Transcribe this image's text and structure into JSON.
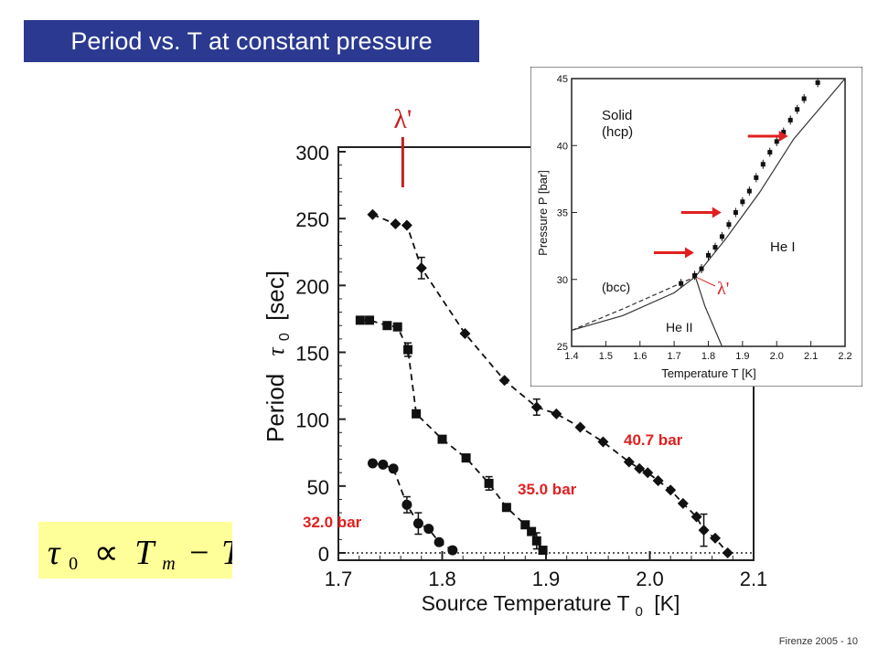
{
  "slide": {
    "title": "Period vs. T at constant pressure",
    "footer": "Firenze 2005 - 10",
    "formula": {
      "lhs": "τ",
      "lhs_sub": "0",
      "rel": "∝",
      "t1": "T",
      "t1_sub": "m",
      "op": "−",
      "t2": "T"
    }
  },
  "colors": {
    "title_bg": "#2b3990",
    "label_red": "#e02020",
    "arrow_red": "#e02020",
    "formula_bg": "#ffff99"
  },
  "chart_data": [
    {
      "type": "scatter",
      "xlabel": "Source Temperature T",
      "xlabel_sub": "0",
      "xlabel_unit": "[K]",
      "ylabel": "Period",
      "ylabel_sym": "τ",
      "ylabel_sub": "0",
      "ylabel_unit": "[sec]",
      "xlim": [
        1.7,
        2.1
      ],
      "ylim": [
        0,
        300
      ],
      "xticks": [
        "1.7",
        "1.8",
        "1.9",
        "2.0",
        "2.1"
      ],
      "yticks": [
        "0",
        "50",
        "100",
        "150",
        "200",
        "250",
        "300"
      ],
      "lambda_marker": {
        "label": "λ'",
        "x": 1.762
      },
      "zero_line": "dotted",
      "series": [
        {
          "name": "40.7 bar",
          "marker": "diamond",
          "x": [
            1.733,
            1.755,
            1.766,
            1.78,
            1.822,
            1.86,
            1.891,
            1.91,
            1.933,
            1.955,
            1.98,
            1.99,
            1.998,
            2.008,
            2.02,
            2.032,
            2.045,
            2.052,
            2.063,
            2.075
          ],
          "y": [
            253,
            246,
            245,
            213,
            164,
            129,
            109,
            104,
            94,
            83,
            68,
            63,
            60,
            54,
            47,
            37,
            27,
            17,
            11,
            0
          ],
          "err": [
            0,
            0,
            0,
            8,
            0,
            0,
            6,
            0,
            0,
            0,
            0,
            0,
            0,
            0,
            0,
            0,
            0,
            12,
            0,
            0
          ]
        },
        {
          "name": "35.0 bar",
          "marker": "square",
          "x": [
            1.721,
            1.73,
            1.747,
            1.757,
            1.767,
            1.775,
            1.8,
            1.823,
            1.845,
            1.862,
            1.88,
            1.886,
            1.891,
            1.897
          ],
          "y": [
            174,
            174,
            170,
            169,
            152,
            104,
            85,
            71,
            52,
            34,
            21,
            16,
            9,
            2
          ],
          "err": [
            0,
            0,
            0,
            0,
            5,
            0,
            0,
            0,
            5,
            0,
            0,
            0,
            6,
            0
          ]
        },
        {
          "name": "32.0 bar",
          "marker": "circle",
          "x": [
            1.733,
            1.743,
            1.753,
            1.766,
            1.777,
            1.787,
            1.797,
            1.81
          ],
          "y": [
            67,
            66,
            63,
            36,
            22,
            18,
            8,
            2
          ],
          "err": [
            0,
            0,
            0,
            6,
            8,
            0,
            0,
            0
          ]
        }
      ]
    },
    {
      "type": "line",
      "xlabel": "Temperature T [K]",
      "ylabel": "Pressure P [bar]",
      "xlim": [
        1.4,
        2.2
      ],
      "ylim": [
        25,
        45
      ],
      "xticks": [
        "1.4",
        "1.5",
        "1.6",
        "1.7",
        "1.8",
        "1.9",
        "2.0",
        "2.1",
        "2.2"
      ],
      "yticks": [
        "25",
        "30",
        "35",
        "40",
        "45"
      ],
      "region_labels": [
        "Solid",
        "(hcp)",
        "He I",
        "(bcc)",
        "He II",
        "λ'"
      ],
      "solid_boundary": {
        "x": [
          1.4,
          1.55,
          1.7,
          1.762,
          1.85,
          1.95,
          2.05,
          2.15,
          2.2
        ],
        "y": [
          26.2,
          27.3,
          29.0,
          30.2,
          33.0,
          36.5,
          40.5,
          43.5,
          45.0
        ]
      },
      "bcc_dashed": {
        "x": [
          1.4,
          1.55,
          1.7,
          1.762
        ],
        "y": [
          26.2,
          27.8,
          29.5,
          30.2
        ]
      },
      "lambda_line": {
        "x": [
          1.762,
          1.79,
          1.84
        ],
        "y": [
          30.2,
          28.0,
          25.0
        ]
      },
      "points": {
        "x": [
          1.72,
          1.76,
          1.78,
          1.8,
          1.82,
          1.84,
          1.86,
          1.88,
          1.9,
          1.92,
          1.94,
          1.96,
          1.98,
          2.0,
          2.02,
          2.04,
          2.06,
          2.08,
          2.12
        ],
        "y": [
          29.7,
          30.3,
          30.8,
          31.8,
          32.4,
          33.2,
          34.1,
          35.0,
          35.8,
          36.6,
          37.6,
          38.6,
          39.5,
          40.3,
          41.0,
          41.9,
          42.7,
          43.5,
          44.7
        ]
      },
      "arrows_at_pressure": [
        32.0,
        35.0,
        40.7
      ]
    }
  ]
}
